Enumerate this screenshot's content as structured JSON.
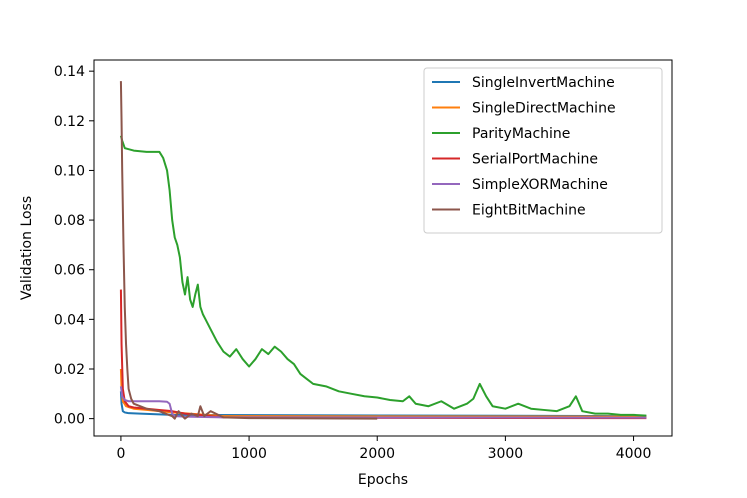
{
  "chart_data": {
    "type": "line",
    "title": "",
    "xlabel": "Epochs",
    "ylabel": "Validation Loss",
    "xlim": [
      -210,
      4300
    ],
    "ylim": [
      -0.007,
      0.1445
    ],
    "xticks": [
      0,
      1000,
      2000,
      3000,
      4000
    ],
    "xtick_labels": [
      "0",
      "1000",
      "2000",
      "3000",
      "4000"
    ],
    "yticks": [
      0.0,
      0.02,
      0.04,
      0.06,
      0.08,
      0.1,
      0.12,
      0.14
    ],
    "ytick_labels": [
      "0.00",
      "0.02",
      "0.04",
      "0.06",
      "0.08",
      "0.10",
      "0.12",
      "0.14"
    ],
    "grid": false,
    "legend_position": "top-right",
    "series": [
      {
        "name": "SingleInvertMachine",
        "color": "#1f77b4",
        "x": [
          0,
          5,
          15,
          30,
          60,
          150,
          400,
          4100
        ],
        "y": [
          0.011,
          0.006,
          0.003,
          0.0025,
          0.0022,
          0.002,
          0.0015,
          0.001
        ]
      },
      {
        "name": "SingleDirectMachine",
        "color": "#ff7f0e",
        "x": [
          0,
          5,
          15,
          40,
          100,
          200,
          300,
          400,
          800,
          4100
        ],
        "y": [
          0.02,
          0.012,
          0.007,
          0.005,
          0.004,
          0.0035,
          0.003,
          0.0025,
          0.001,
          0.0008
        ]
      },
      {
        "name": "ParityMachine",
        "color": "#2ca02c",
        "x": [
          0,
          10,
          30,
          100,
          200,
          300,
          330,
          360,
          380,
          400,
          420,
          440,
          460,
          480,
          500,
          520,
          540,
          560,
          580,
          600,
          620,
          640,
          660,
          700,
          750,
          800,
          850,
          900,
          950,
          1000,
          1050,
          1100,
          1150,
          1200,
          1250,
          1300,
          1350,
          1400,
          1450,
          1500,
          1600,
          1700,
          1800,
          1900,
          2000,
          2100,
          2200,
          2250,
          2300,
          2400,
          2500,
          2600,
          2700,
          2750,
          2800,
          2850,
          2900,
          3000,
          3100,
          3200,
          3300,
          3400,
          3500,
          3550,
          3600,
          3700,
          3800,
          3900,
          4000,
          4100
        ],
        "y": [
          0.114,
          0.112,
          0.109,
          0.108,
          0.1075,
          0.1075,
          0.105,
          0.1,
          0.092,
          0.08,
          0.073,
          0.07,
          0.065,
          0.055,
          0.05,
          0.057,
          0.048,
          0.045,
          0.05,
          0.054,
          0.045,
          0.042,
          0.04,
          0.036,
          0.031,
          0.027,
          0.025,
          0.028,
          0.024,
          0.021,
          0.024,
          0.028,
          0.026,
          0.029,
          0.027,
          0.024,
          0.022,
          0.018,
          0.016,
          0.014,
          0.013,
          0.011,
          0.01,
          0.009,
          0.0085,
          0.0075,
          0.007,
          0.009,
          0.006,
          0.005,
          0.007,
          0.004,
          0.006,
          0.008,
          0.014,
          0.009,
          0.005,
          0.004,
          0.006,
          0.004,
          0.0035,
          0.003,
          0.005,
          0.009,
          0.003,
          0.002,
          0.002,
          0.0015,
          0.0015,
          0.0012
        ]
      },
      {
        "name": "SerialPortMachine",
        "color": "#d62728",
        "x": [
          0,
          5,
          15,
          30,
          60,
          100,
          200,
          300,
          400,
          500,
          800,
          1500,
          4100
        ],
        "y": [
          0.052,
          0.03,
          0.012,
          0.007,
          0.005,
          0.0045,
          0.004,
          0.0035,
          0.003,
          0.002,
          0.0005,
          0.0003,
          0.0002
        ]
      },
      {
        "name": "SimpleXORMachine",
        "color": "#9467bd",
        "x": [
          0,
          10,
          30,
          60,
          100,
          200,
          300,
          360,
          380,
          390,
          400,
          420,
          500,
          800,
          4100
        ],
        "y": [
          0.013,
          0.009,
          0.0075,
          0.007,
          0.007,
          0.007,
          0.007,
          0.0068,
          0.006,
          0.004,
          0.002,
          0.001,
          0.0008,
          0.0005,
          0.0004
        ]
      },
      {
        "name": "EightBitMachine",
        "color": "#8c564b",
        "x": [
          0,
          5,
          10,
          20,
          30,
          40,
          50,
          60,
          80,
          100,
          150,
          200,
          300,
          400,
          420,
          450,
          480,
          500,
          550,
          600,
          620,
          650,
          700,
          800,
          1000,
          1500,
          2000
        ],
        "y": [
          0.136,
          0.12,
          0.1,
          0.07,
          0.045,
          0.03,
          0.02,
          0.012,
          0.008,
          0.006,
          0.005,
          0.004,
          0.003,
          0.001,
          0.0,
          0.003,
          0.001,
          0.0,
          0.002,
          0.001,
          0.005,
          0.001,
          0.003,
          0.0005,
          0.0002,
          0.0001,
          0.0
        ]
      }
    ]
  }
}
